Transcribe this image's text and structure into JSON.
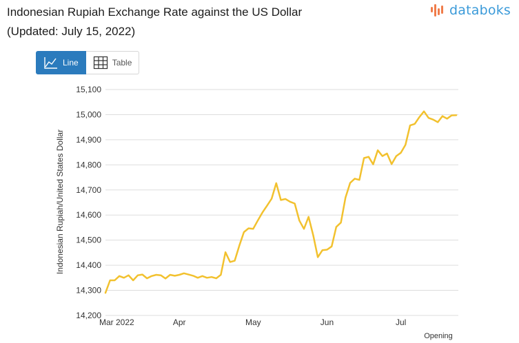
{
  "header": {
    "title_line1": "Indonesian Rupiah Exchange Rate against the US Dollar",
    "title_line2": "(Updated: July 15, 2022)",
    "brand": "databoks"
  },
  "toggle": {
    "line_label": "Line",
    "table_label": "Table",
    "active": "line"
  },
  "colors": {
    "series": "#f2c12e",
    "accent": "#2b7bbd",
    "grid": "#dddddd",
    "brand": "#3a9ad9",
    "brand_mark": "#f07c4a"
  },
  "chart_data": {
    "type": "line",
    "title": "Indonesian Rupiah Exchange Rate against the US Dollar",
    "ylabel": "Indonesian Rupiah/United States Dollar",
    "xlabel": "",
    "legend_caption": "Opening",
    "ylim": [
      14200,
      15100
    ],
    "yticks": [
      14200,
      14300,
      14400,
      14500,
      14600,
      14700,
      14800,
      14900,
      15000,
      15100
    ],
    "ytick_labels": [
      "14,200",
      "14,300",
      "14,400",
      "14,500",
      "14,600",
      "14,700",
      "14,800",
      "14,900",
      "15,000",
      "15,100"
    ],
    "xticks": [
      {
        "label": "Mar 2022",
        "index": 0
      },
      {
        "label": "Apr",
        "index": 16
      },
      {
        "label": "May",
        "index": 32
      },
      {
        "label": "Jun",
        "index": 48
      },
      {
        "label": "Jul",
        "index": 64
      }
    ],
    "grid": true,
    "series": [
      {
        "name": "Opening",
        "values": [
          14290,
          14340,
          14340,
          14357,
          14350,
          14360,
          14340,
          14360,
          14363,
          14348,
          14357,
          14362,
          14360,
          14347,
          14362,
          14358,
          14362,
          14368,
          14363,
          14358,
          14350,
          14357,
          14350,
          14353,
          14348,
          14362,
          14452,
          14413,
          14418,
          14478,
          14532,
          14547,
          14545,
          14578,
          14610,
          14637,
          14665,
          14727,
          14660,
          14664,
          14653,
          14646,
          14578,
          14545,
          14593,
          14520,
          14432,
          14460,
          14462,
          14475,
          14553,
          14570,
          14670,
          14728,
          14745,
          14740,
          14827,
          14832,
          14802,
          14858,
          14835,
          14845,
          14803,
          14835,
          14848,
          14880,
          14957,
          14963,
          14990,
          15013,
          14987,
          14980,
          14970,
          14994,
          14984,
          14997,
          14998
        ]
      }
    ]
  }
}
